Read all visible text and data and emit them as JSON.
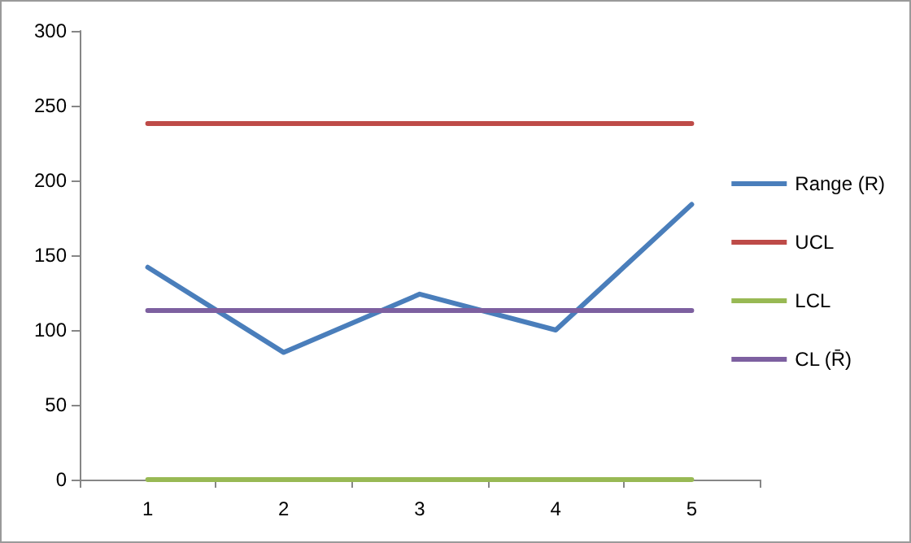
{
  "chart_data": {
    "type": "line",
    "categories": [
      "1",
      "2",
      "3",
      "4",
      "5"
    ],
    "series": [
      {
        "name": "Range (R)",
        "color": "#4a7ebb",
        "values": [
          142,
          85,
          124,
          100,
          184
        ]
      },
      {
        "name": "UCL",
        "color": "#be4b48",
        "values": [
          238,
          238,
          238,
          238,
          238
        ]
      },
      {
        "name": "LCL",
        "color": "#98b954",
        "values": [
          0,
          0,
          0,
          0,
          0
        ]
      },
      {
        "name": "CL (R̄)",
        "color": "#7d60a0",
        "values": [
          113,
          113,
          113,
          113,
          113
        ]
      }
    ],
    "ylim": [
      0,
      300
    ],
    "yticks": [
      0,
      50,
      100,
      150,
      200,
      250,
      300
    ],
    "grid": false,
    "legend": "right",
    "marker": "none",
    "line_style": "solid"
  }
}
